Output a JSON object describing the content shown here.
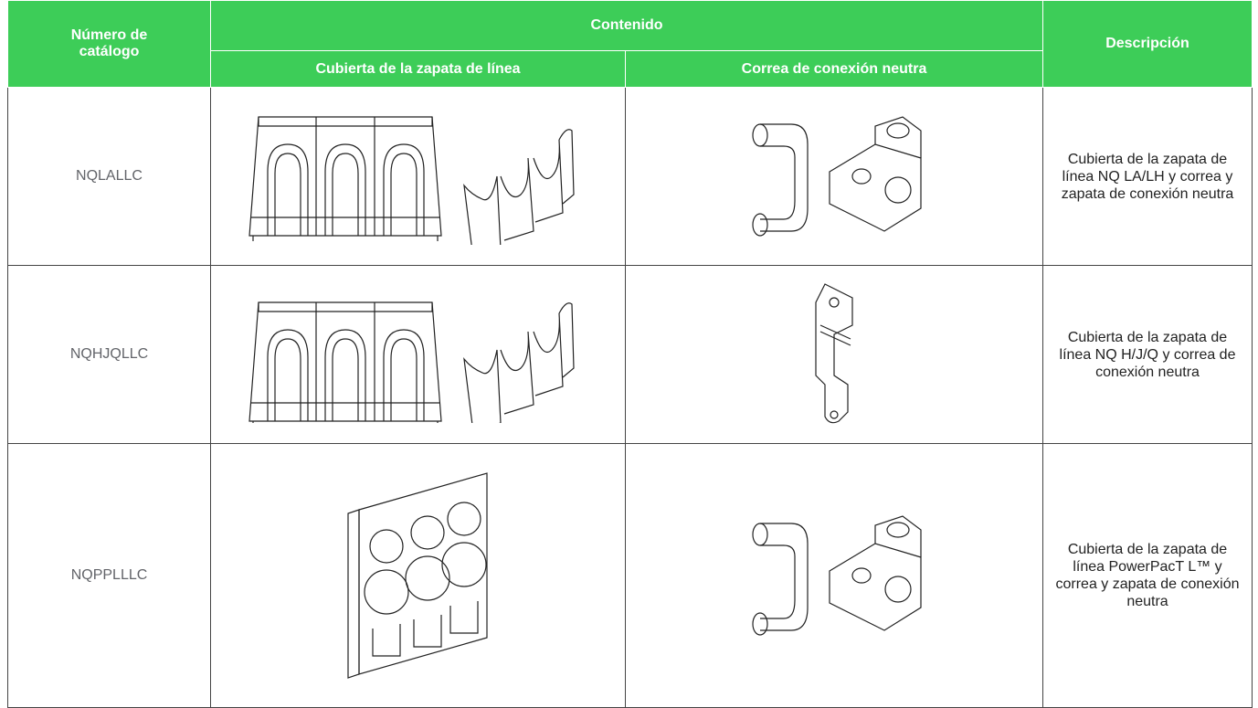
{
  "header": {
    "catalog_number": "Número de catálogo",
    "contents": "Contenido",
    "contents_columns": [
      "Cubierta de la zapata de línea",
      "Correa de conexión neutra"
    ],
    "description": "Descripción"
  },
  "rows": [
    {
      "catalog_number": "NQLALLC",
      "description": "Cubierta de la zapata de línea NQ LA/LH y correa y zapata de conexión neutra"
    },
    {
      "catalog_number": "NQHJQLLC",
      "description": "Cubierta de la zapata de línea NQ H/J/Q y correa de conexión neutra"
    },
    {
      "catalog_number": "NQPPLLLC",
      "description": "Cubierta de la zapata de línea PowerPacT L™ y correa y zapata de conexión neutra"
    }
  ]
}
